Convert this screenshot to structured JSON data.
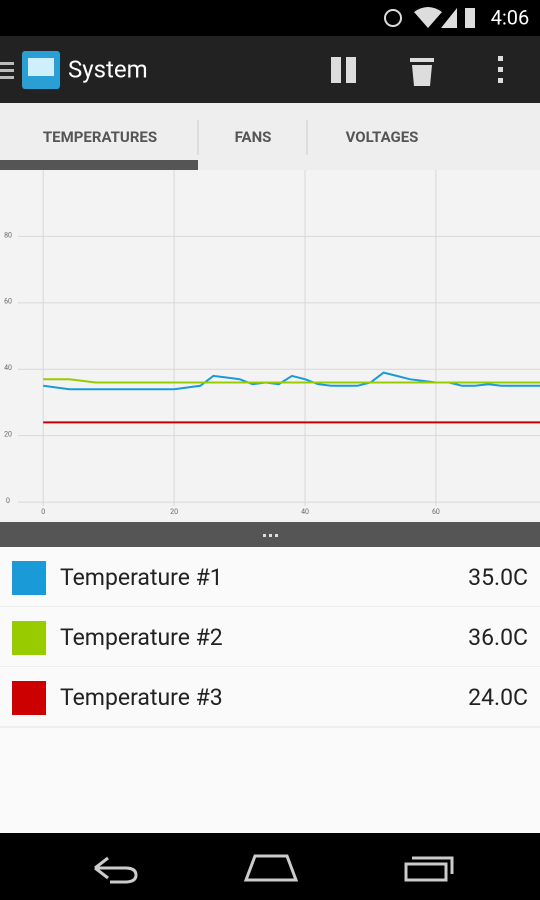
{
  "status_bar": {
    "time": "4:06"
  },
  "action_bar": {
    "title": "System"
  },
  "tabs": [
    "TEMPERATURES",
    "FANS",
    "VOLTAGES"
  ],
  "chart": {
    "type": "line",
    "x": [
      0,
      2,
      4,
      6,
      8,
      10,
      12,
      14,
      16,
      18,
      20,
      22,
      24,
      26,
      28,
      30,
      32,
      34,
      36,
      38,
      40,
      42,
      44,
      46,
      48,
      50,
      52,
      54,
      56,
      58,
      60,
      62,
      64,
      66,
      68,
      70,
      72,
      74,
      76
    ],
    "series": [
      {
        "name": "Temperature #1",
        "color": "#1a9bd7",
        "current": "35.0C",
        "values": [
          35,
          34.5,
          34,
          34,
          34,
          34,
          34,
          34,
          34,
          34,
          34,
          34.5,
          35,
          38,
          37.5,
          37,
          35.5,
          36,
          35.5,
          38,
          37,
          35.5,
          35,
          35,
          35,
          36,
          39,
          38,
          37,
          36.5,
          36,
          36,
          35,
          35,
          35.5,
          35,
          35,
          35,
          35
        ]
      },
      {
        "name": "Temperature #2",
        "color": "#99cc00",
        "current": "36.0C",
        "values": [
          37,
          37,
          37,
          36.5,
          36,
          36,
          36,
          36,
          36,
          36,
          36,
          36,
          36,
          36,
          36,
          36,
          36,
          36,
          36,
          36,
          36,
          36,
          36,
          36,
          36,
          36,
          36,
          36,
          36,
          36,
          36,
          36,
          36,
          36,
          36,
          36,
          36,
          36,
          36
        ]
      },
      {
        "name": "Temperature #3",
        "color": "#cc0000",
        "current": "24.0C",
        "values": [
          24,
          24,
          24,
          24,
          24,
          24,
          24,
          24,
          24,
          24,
          24,
          24,
          24,
          24,
          24,
          24,
          24,
          24,
          24,
          24,
          24,
          24,
          24,
          24,
          24,
          24,
          24,
          24,
          24,
          24,
          24,
          24,
          24,
          24,
          24,
          24,
          24,
          24,
          24
        ]
      }
    ],
    "xlim": [
      -6.6,
      75.9
    ],
    "xticks": [
      0,
      20,
      40,
      60
    ],
    "ylim": [
      -6,
      100
    ],
    "yticks": [
      0,
      20,
      40,
      60,
      80
    ],
    "grid": true
  }
}
